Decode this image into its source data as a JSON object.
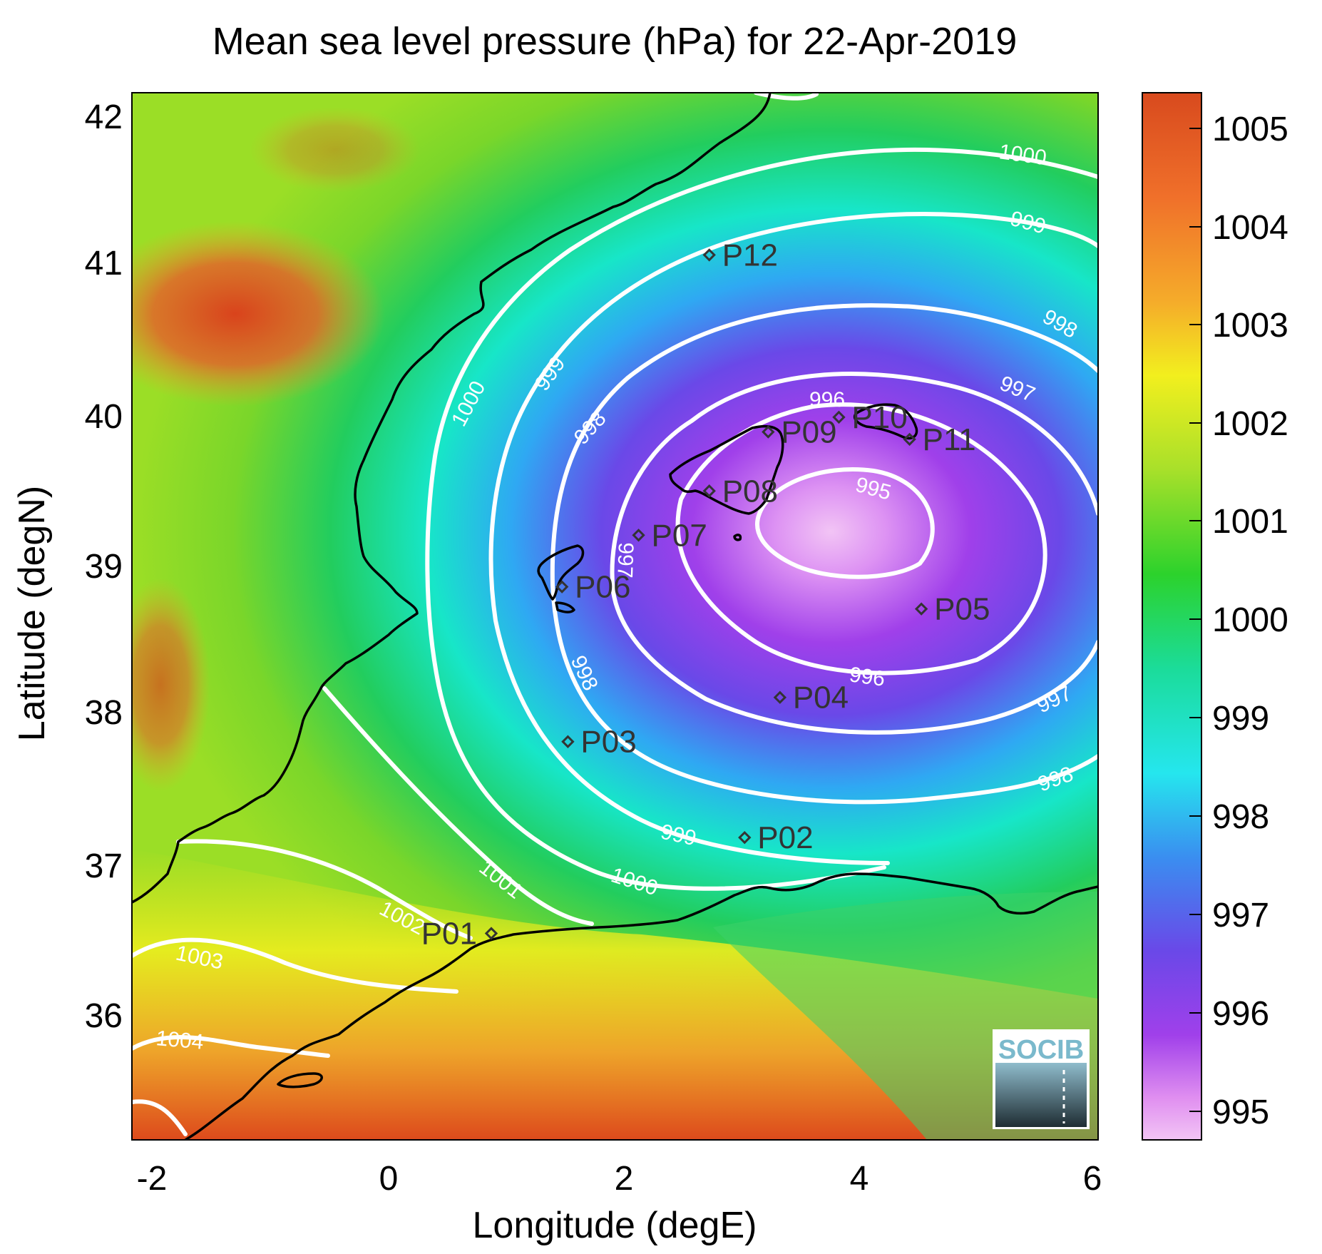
{
  "title": "Mean sea level pressure (hPa) for 22-Apr-2019",
  "x_axis_label": "Longitude (degE)",
  "y_axis_label": "Latitude (degN)",
  "x_ticks": [
    "-2",
    "0",
    "2",
    "4",
    "6"
  ],
  "y_ticks": [
    "42",
    "41",
    "40",
    "39",
    "38",
    "37",
    "36"
  ],
  "colorbar_ticks": [
    "1005",
    "1004",
    "1003",
    "1002",
    "1001",
    "1000",
    "999",
    "998",
    "997",
    "996",
    "995"
  ],
  "contour_labels": [
    "1000",
    "999",
    "998",
    "997",
    "996",
    "995",
    "1001",
    "1002",
    "1003",
    "1004"
  ],
  "logo_text": "SOCIB",
  "colors": {
    "contour": "#ffffff",
    "coastline": "#000000",
    "marker": "#333333",
    "colormap_high": "#d84a1e",
    "colormap_low": "#f2c4f5"
  },
  "chart_data": {
    "type": "heatmap",
    "xlim": [
      -2.2,
      6
    ],
    "ylim": [
      35.1,
      42.2
    ],
    "colorbar_range": [
      994.7,
      1005.4
    ],
    "low_center": {
      "lon": 4.0,
      "lat": 39.2
    },
    "contour_levels": [
      995,
      996,
      997,
      998,
      999,
      1000,
      1001,
      1002,
      1003,
      1004
    ],
    "points": [
      {
        "name": "P01",
        "lon": 0.85,
        "lat": 36.5
      },
      {
        "name": "P02",
        "lon": 3.0,
        "lat": 37.15
      },
      {
        "name": "P03",
        "lon": 1.5,
        "lat": 37.8
      },
      {
        "name": "P04",
        "lon": 3.3,
        "lat": 38.1
      },
      {
        "name": "P05",
        "lon": 4.5,
        "lat": 38.7
      },
      {
        "name": "P06",
        "lon": 1.45,
        "lat": 38.85
      },
      {
        "name": "P07",
        "lon": 2.1,
        "lat": 39.2
      },
      {
        "name": "P08",
        "lon": 2.7,
        "lat": 39.5
      },
      {
        "name": "P09",
        "lon": 3.2,
        "lat": 39.9
      },
      {
        "name": "P10",
        "lon": 3.8,
        "lat": 40.0
      },
      {
        "name": "P11",
        "lon": 4.4,
        "lat": 39.85
      },
      {
        "name": "P12",
        "lon": 2.7,
        "lat": 41.1
      }
    ]
  }
}
